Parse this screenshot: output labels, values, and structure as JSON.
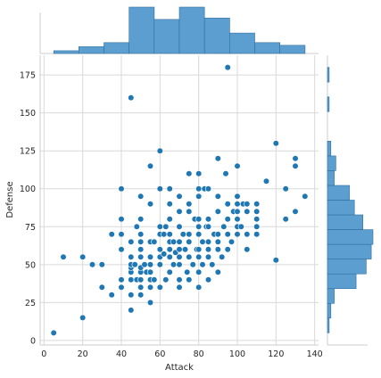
{
  "chart_data": {
    "type": "scatter",
    "subtype": "jointplot",
    "xlabel": "Attack",
    "ylabel": "Defense",
    "xlim": [
      -2,
      142
    ],
    "ylim": [
      -3,
      188
    ],
    "xticks": [
      0,
      20,
      40,
      60,
      80,
      100,
      120,
      140
    ],
    "yticks": [
      0,
      25,
      50,
      75,
      100,
      125,
      150,
      175
    ],
    "grid": true,
    "colors": {
      "marker": "#1f77b4",
      "hist_fill": "#5b9ecf",
      "hist_edge": "#2f6f9f",
      "grid": "#d9d9d9",
      "spine": "#cccccc"
    },
    "points": [
      [
        5,
        5
      ],
      [
        10,
        55
      ],
      [
        20,
        15
      ],
      [
        20,
        55
      ],
      [
        25,
        50
      ],
      [
        30,
        35
      ],
      [
        30,
        50
      ],
      [
        35,
        30
      ],
      [
        35,
        70
      ],
      [
        40,
        35
      ],
      [
        40,
        40
      ],
      [
        40,
        60
      ],
      [
        40,
        70
      ],
      [
        40,
        80
      ],
      [
        40,
        100
      ],
      [
        45,
        20
      ],
      [
        45,
        30
      ],
      [
        45,
        40
      ],
      [
        45,
        45
      ],
      [
        45,
        48
      ],
      [
        45,
        50
      ],
      [
        45,
        55
      ],
      [
        45,
        65
      ],
      [
        45,
        160
      ],
      [
        47,
        50
      ],
      [
        48,
        40
      ],
      [
        48,
        75
      ],
      [
        50,
        30
      ],
      [
        50,
        35
      ],
      [
        50,
        40
      ],
      [
        50,
        45
      ],
      [
        50,
        48
      ],
      [
        50,
        55
      ],
      [
        50,
        60
      ],
      [
        50,
        65
      ],
      [
        50,
        70
      ],
      [
        50,
        80
      ],
      [
        50,
        95
      ],
      [
        52,
        50
      ],
      [
        53,
        45
      ],
      [
        55,
        25
      ],
      [
        55,
        35
      ],
      [
        55,
        40
      ],
      [
        55,
        45
      ],
      [
        55,
        50
      ],
      [
        55,
        55
      ],
      [
        55,
        65
      ],
      [
        55,
        90
      ],
      [
        55,
        115
      ],
      [
        57,
        40
      ],
      [
        57,
        65
      ],
      [
        60,
        35
      ],
      [
        60,
        50
      ],
      [
        60,
        55
      ],
      [
        60,
        60
      ],
      [
        60,
        70
      ],
      [
        60,
        75
      ],
      [
        60,
        100
      ],
      [
        60,
        125
      ],
      [
        62,
        57
      ],
      [
        62,
        70
      ],
      [
        63,
        40
      ],
      [
        63,
        75
      ],
      [
        65,
        45
      ],
      [
        65,
        55
      ],
      [
        65,
        60
      ],
      [
        65,
        65
      ],
      [
        65,
        70
      ],
      [
        65,
        80
      ],
      [
        65,
        90
      ],
      [
        65,
        100
      ],
      [
        67,
        50
      ],
      [
        67,
        65
      ],
      [
        68,
        58
      ],
      [
        70,
        35
      ],
      [
        70,
        40
      ],
      [
        70,
        50
      ],
      [
        70,
        55
      ],
      [
        70,
        60
      ],
      [
        70,
        65
      ],
      [
        70,
        75
      ],
      [
        70,
        85
      ],
      [
        70,
        95
      ],
      [
        72,
        70
      ],
      [
        73,
        60
      ],
      [
        74,
        45
      ],
      [
        75,
        40
      ],
      [
        75,
        55
      ],
      [
        75,
        65
      ],
      [
        75,
        70
      ],
      [
        75,
        85
      ],
      [
        75,
        90
      ],
      [
        75,
        110
      ],
      [
        77,
        50
      ],
      [
        78,
        80
      ],
      [
        79,
        60
      ],
      [
        80,
        35
      ],
      [
        80,
        45
      ],
      [
        80,
        55
      ],
      [
        80,
        60
      ],
      [
        80,
        70
      ],
      [
        80,
        75
      ],
      [
        80,
        80
      ],
      [
        80,
        95
      ],
      [
        80,
        100
      ],
      [
        80,
        110
      ],
      [
        82,
        50
      ],
      [
        82,
        65
      ],
      [
        83,
        100
      ],
      [
        84,
        75
      ],
      [
        85,
        40
      ],
      [
        85,
        55
      ],
      [
        85,
        60
      ],
      [
        85,
        65
      ],
      [
        85,
        75
      ],
      [
        85,
        80
      ],
      [
        85,
        100
      ],
      [
        87,
        50
      ],
      [
        88,
        70
      ],
      [
        90,
        45
      ],
      [
        90,
        60
      ],
      [
        90,
        65
      ],
      [
        90,
        70
      ],
      [
        90,
        85
      ],
      [
        90,
        95
      ],
      [
        90,
        120
      ],
      [
        92,
        55
      ],
      [
        93,
        75
      ],
      [
        94,
        110
      ],
      [
        95,
        60
      ],
      [
        95,
        70
      ],
      [
        95,
        80
      ],
      [
        95,
        90
      ],
      [
        95,
        180
      ],
      [
        97,
        65
      ],
      [
        98,
        85
      ],
      [
        100,
        70
      ],
      [
        100,
        75
      ],
      [
        100,
        80
      ],
      [
        100,
        85
      ],
      [
        100,
        90
      ],
      [
        100,
        95
      ],
      [
        100,
        115
      ],
      [
        102,
        75
      ],
      [
        103,
        90
      ],
      [
        105,
        60
      ],
      [
        105,
        70
      ],
      [
        105,
        85
      ],
      [
        105,
        90
      ],
      [
        110,
        70
      ],
      [
        110,
        75
      ],
      [
        110,
        80
      ],
      [
        110,
        85
      ],
      [
        110,
        90
      ],
      [
        115,
        105
      ],
      [
        120,
        53
      ],
      [
        120,
        130
      ],
      [
        125,
        80
      ],
      [
        125,
        100
      ],
      [
        130,
        85
      ],
      [
        130,
        115
      ],
      [
        130,
        120
      ],
      [
        135,
        95
      ]
    ]
  }
}
